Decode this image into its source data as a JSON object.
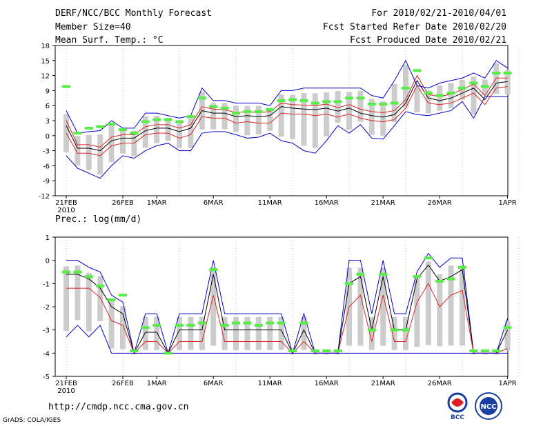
{
  "header": {
    "title": "DERF/NCC/BCC Monthly Forecast",
    "member": "Member Size=40",
    "variable": "Mean Surf. Temp.: °C",
    "period": "For 2010/02/21-2010/04/01",
    "started": "Fcst Started Refer Date 2010/02/20",
    "produced": "Fcst Produced Date 2010/02/21"
  },
  "footer": {
    "url": "http://cmdp.ncc.cma.gov.cn",
    "credit": "GrADS: COLA/IGES",
    "logo_bcc": "BCC",
    "logo_ncc": "NCC"
  },
  "colors": {
    "max_line": "#0000cc",
    "min_line": "#dd2222",
    "mean_line": "#000000",
    "box": "#cccccc",
    "marker": "#55ee44"
  },
  "chart_data": [
    {
      "type": "line",
      "title": "Mean Surf. Temp.: °C",
      "ylim": [
        -12,
        18
      ],
      "yticks": [
        -12,
        -9,
        -6,
        -3,
        0,
        3,
        6,
        9,
        12,
        15,
        18
      ],
      "x_ticks": [
        {
          "day": 1,
          "label": "21FEB",
          "sub": "2010"
        },
        {
          "day": 6,
          "label": "26FEB"
        },
        {
          "day": 9,
          "label": "1MAR"
        },
        {
          "day": 14,
          "label": "6MAR"
        },
        {
          "day": 19,
          "label": "11MAR"
        },
        {
          "day": 24,
          "label": "16MAR"
        },
        {
          "day": 29,
          "label": "21MAR"
        },
        {
          "day": 34,
          "label": "26MAR"
        },
        {
          "day": 40,
          "label": "1APR"
        }
      ],
      "series": [
        {
          "name": "max",
          "values": [
            -4,
            -6.5,
            -7.5,
            -8.5,
            -6,
            -4,
            -4.5,
            -3,
            -2,
            -1.5,
            -3,
            -3,
            0.5,
            0.8,
            0.8,
            0.2,
            -0.5,
            -0.3,
            0.5,
            -1,
            -1.5,
            -3,
            -3.5,
            -1,
            2,
            0.5,
            2.2,
            -0.5,
            -0.7,
            2,
            4.8,
            4.2,
            4,
            4.5,
            5,
            6.8,
            3.5,
            7.8,
            7.8,
            7.8
          ]
        },
        {
          "name": "min",
          "values": [
            0.5,
            -3.5,
            -3.5,
            -4,
            -2,
            -1.5,
            -1.5,
            0.2,
            0.5,
            0.5,
            -0.5,
            0.2,
            3.8,
            3.5,
            3.5,
            2.5,
            2.8,
            2.5,
            2.5,
            4.5,
            4.3,
            4.3,
            4,
            4.3,
            3.7,
            4.3,
            3.5,
            3,
            2.8,
            3.2,
            5.5,
            10,
            6.5,
            6.2,
            6.5,
            7.5,
            8.5,
            6.2,
            9.5,
            9.8
          ]
        },
        {
          "name": "mean",
          "values": [
            2,
            -2.5,
            -2.5,
            -3,
            -1,
            -0.5,
            -0.5,
            1,
            1.5,
            1.5,
            0.8,
            1.5,
            5,
            4.5,
            4.5,
            3.8,
            4,
            3.8,
            4,
            5.8,
            5.5,
            5.3,
            5.2,
            5.5,
            4.9,
            5.5,
            4.5,
            4,
            3.7,
            4.2,
            6.5,
            11,
            7.5,
            7,
            7.5,
            8.5,
            9.5,
            7.2,
            10.5,
            10.8
          ]
        },
        {
          "name": "mean2",
          "values": [
            3,
            -1.8,
            -1.8,
            -2.3,
            -0.3,
            0.2,
            0.2,
            1.8,
            2.2,
            2.2,
            1.5,
            2.2,
            5.8,
            5.3,
            5.2,
            4.6,
            4.8,
            4.6,
            4.8,
            6.5,
            6.2,
            6.1,
            6,
            6.3,
            5.6,
            6.2,
            5.3,
            4.8,
            4.6,
            5,
            7.2,
            12,
            8.2,
            7.8,
            8.3,
            9.2,
            10.3,
            8,
            11.5,
            11.5
          ]
        },
        {
          "name": "upper",
          "values": [
            5,
            0.5,
            0.8,
            1,
            3,
            1.5,
            1.5,
            4.5,
            4.5,
            4,
            3.5,
            4,
            9.5,
            7,
            7,
            6.5,
            6.5,
            6.5,
            6,
            9,
            9,
            9.5,
            9.5,
            9.5,
            9.5,
            9.5,
            9.5,
            8,
            7.5,
            11,
            15,
            10,
            9.5,
            10.5,
            11,
            11.5,
            12.5,
            11.5,
            15,
            13.5
          ]
        }
      ],
      "markers": [
        9.8,
        0.5,
        1.5,
        1.8,
        2.3,
        1.2,
        0.5,
        2.8,
        3.2,
        3.2,
        2.8,
        3.8,
        7.5,
        5.8,
        5.5,
        4.5,
        4.8,
        4.8,
        5.2,
        7,
        7.2,
        7,
        6.5,
        6.8,
        6.8,
        7.5,
        7.5,
        6.3,
        6.3,
        6.5,
        9.5,
        13,
        8.5,
        8,
        8.5,
        9.5,
        10.5,
        9.8,
        12.5,
        12.5
      ]
    },
    {
      "type": "line",
      "title": "Prec.: log(mm/d)",
      "ylim": [
        -5,
        1
      ],
      "yticks": [
        -5,
        -4,
        -3,
        -2,
        -1,
        0,
        1
      ],
      "x_ticks": [
        {
          "day": 1,
          "label": "21FEB",
          "sub": "2010"
        },
        {
          "day": 6,
          "label": "26FEB"
        },
        {
          "day": 9,
          "label": "1MAR"
        },
        {
          "day": 14,
          "label": "6MAR"
        },
        {
          "day": 19,
          "label": "11MAR"
        },
        {
          "day": 24,
          "label": "16MAR"
        },
        {
          "day": 29,
          "label": "21MAR"
        },
        {
          "day": 34,
          "label": "26MAR"
        },
        {
          "day": 40,
          "label": "1APR"
        }
      ],
      "series": [
        {
          "name": "max",
          "values": [
            0,
            0,
            -0.3,
            -0.5,
            -1.5,
            -1.8,
            -4,
            -2.3,
            -2.3,
            -4,
            -2.3,
            -2.3,
            -2.3,
            0,
            -2.3,
            -2.3,
            -2.3,
            -2.3,
            -2.3,
            -2.3,
            -4,
            -2.3,
            -4,
            -4,
            -4,
            0,
            0,
            -2.3,
            0,
            -2.3,
            -2.3,
            -0.5,
            0.3,
            -0.3,
            0.1,
            0.1,
            -4,
            -4,
            -4,
            -2.5
          ]
        },
        {
          "name": "mean",
          "values": [
            -0.6,
            -0.6,
            -0.8,
            -1.2,
            -2,
            -2.3,
            -4,
            -3.1,
            -3.1,
            -4,
            -3,
            -3,
            -3,
            -0.6,
            -3,
            -3,
            -3,
            -3,
            -3,
            -3,
            -4,
            -3,
            -4,
            -4,
            -4,
            -1,
            -0.7,
            -3,
            -0.7,
            -3,
            -3,
            -0.8,
            -0.2,
            -0.9,
            -0.7,
            -0.4,
            -4,
            -4,
            -4,
            -3
          ]
        },
        {
          "name": "min",
          "values": [
            -1.2,
            -1.2,
            -1.2,
            -1.6,
            -2.6,
            -2.8,
            -4,
            -3.5,
            -3.5,
            -4,
            -3.5,
            -3.5,
            -3.5,
            -1.5,
            -3.5,
            -3.5,
            -3.5,
            -3.5,
            -3.5,
            -3.5,
            -4,
            -3.5,
            -4,
            -4,
            -4,
            -2,
            -1.5,
            -3.5,
            -1.5,
            -3.5,
            -3.5,
            -1.8,
            -1,
            -2,
            -1.5,
            -1.3,
            -4,
            -4,
            -4,
            -3.8
          ]
        },
        {
          "name": "lower",
          "values": [
            -3.3,
            -2.8,
            -3.3,
            -2.8,
            -4,
            -4,
            -4,
            -4,
            -4,
            -4,
            -4,
            -4,
            -4,
            -4,
            -4,
            -4,
            -4,
            -4,
            -4,
            -4,
            -4,
            -4,
            -4,
            -4,
            -4,
            -4,
            -4,
            -4,
            -4,
            -4,
            -4,
            -4,
            -4,
            -4,
            -4,
            -4,
            -4,
            -4,
            -4,
            -4
          ]
        }
      ],
      "markers": [
        -0.5,
        -0.5,
        -0.7,
        -1.1,
        -1.7,
        -1.5,
        -3.9,
        -2.9,
        -2.8,
        -4,
        -2.8,
        -2.8,
        -2.7,
        -0.4,
        -2.8,
        -2.7,
        -2.7,
        -2.8,
        -2.7,
        -2.7,
        -3.9,
        -2.7,
        -3.9,
        -3.9,
        -3.9,
        -1,
        -0.6,
        -3,
        -0.6,
        -3,
        -3,
        -0.7,
        0.1,
        -0.9,
        -0.8,
        -0.3,
        -3.9,
        -3.9,
        -3.9,
        -2.9
      ]
    }
  ]
}
